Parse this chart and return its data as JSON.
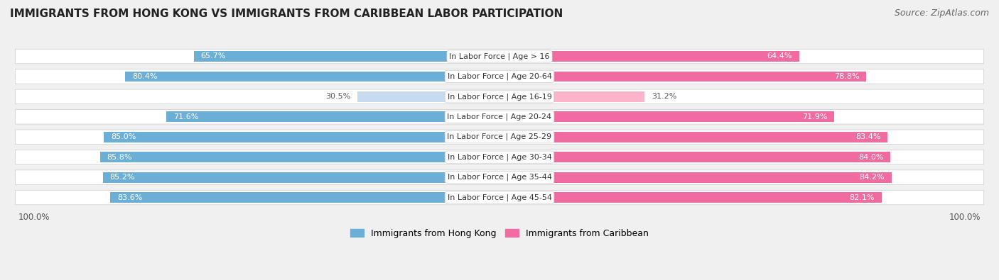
{
  "title": "IMMIGRANTS FROM HONG KONG VS IMMIGRANTS FROM CARIBBEAN LABOR PARTICIPATION",
  "source": "Source: ZipAtlas.com",
  "categories": [
    "In Labor Force | Age > 16",
    "In Labor Force | Age 20-64",
    "In Labor Force | Age 16-19",
    "In Labor Force | Age 20-24",
    "In Labor Force | Age 25-29",
    "In Labor Force | Age 30-34",
    "In Labor Force | Age 35-44",
    "In Labor Force | Age 45-54"
  ],
  "hk_values": [
    65.7,
    80.4,
    30.5,
    71.6,
    85.0,
    85.8,
    85.2,
    83.6
  ],
  "carib_values": [
    64.4,
    78.8,
    31.2,
    71.9,
    83.4,
    84.0,
    84.2,
    82.1
  ],
  "hk_color": "#6baed6",
  "carib_color": "#f06ca0",
  "hk_color_light": "#c6dbef",
  "carib_color_light": "#fbb4ca",
  "bg_color": "#f0f0f0",
  "row_bg": "#e8e8e8",
  "bar_height": 0.52,
  "legend_hk": "Immigrants from Hong Kong",
  "legend_carib": "Immigrants from Caribbean",
  "x_max": 100.0,
  "label_fontsize": 8.0,
  "value_fontsize": 8.0,
  "title_fontsize": 11.0,
  "source_fontsize": 9.0
}
